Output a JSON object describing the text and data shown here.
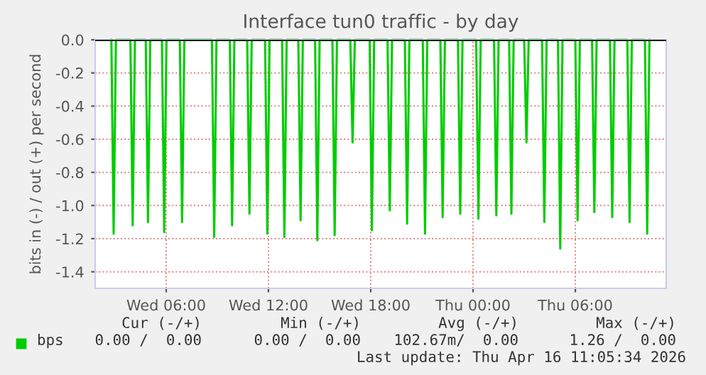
{
  "chart_data": {
    "type": "line",
    "title": "Interface tun0 traffic - by day",
    "ylabel": "bits in (-) / out (+) per second",
    "x": [
      "2026-04-15T02:47",
      "2026-04-15T02:55",
      "2026-04-15T03:03",
      "2026-04-15T03:54",
      "2026-04-15T04:02",
      "2026-04-15T04:10",
      "2026-04-15T04:48",
      "2026-04-15T04:56",
      "2026-04-15T05:04",
      "2026-04-15T05:45",
      "2026-04-15T05:53",
      "2026-04-15T06:01",
      "2026-04-15T06:48",
      "2026-04-15T06:56",
      "2026-04-15T07:04",
      "2026-04-15T08:41",
      "2026-04-15T08:49",
      "2026-04-15T08:57",
      "2026-04-15T09:44",
      "2026-04-15T09:52",
      "2026-04-15T10:00",
      "2026-04-15T10:45",
      "2026-04-15T10:53",
      "2026-04-15T11:01",
      "2026-04-15T11:48",
      "2026-04-15T11:56",
      "2026-04-15T12:04",
      "2026-04-15T12:48",
      "2026-04-15T12:56",
      "2026-04-15T13:04",
      "2026-04-15T13:45",
      "2026-04-15T13:53",
      "2026-04-15T14:01",
      "2026-04-15T14:44",
      "2026-04-15T14:52",
      "2026-04-15T15:00",
      "2026-04-15T15:45",
      "2026-04-15T15:53",
      "2026-04-15T16:01",
      "2026-04-15T16:48",
      "2026-04-15T16:56",
      "2026-04-15T17:04",
      "2026-04-15T17:56",
      "2026-04-15T18:04",
      "2026-04-15T18:12",
      "2026-04-15T18:59",
      "2026-04-15T19:07",
      "2026-04-15T19:15",
      "2026-04-15T20:00",
      "2026-04-15T20:08",
      "2026-04-15T20:16",
      "2026-04-15T21:03",
      "2026-04-15T21:11",
      "2026-04-15T21:19",
      "2026-04-15T22:05",
      "2026-04-15T22:13",
      "2026-04-15T22:21",
      "2026-04-15T23:07",
      "2026-04-15T23:15",
      "2026-04-15T23:23",
      "2026-04-16T00:11",
      "2026-04-16T00:19",
      "2026-04-16T00:27",
      "2026-04-16T01:14",
      "2026-04-16T01:22",
      "2026-04-16T01:30",
      "2026-04-16T02:07",
      "2026-04-16T02:15",
      "2026-04-16T02:23",
      "2026-04-16T03:00",
      "2026-04-16T03:08",
      "2026-04-16T03:16",
      "2026-04-16T04:03",
      "2026-04-16T04:11",
      "2026-04-16T04:19",
      "2026-04-16T04:59",
      "2026-04-16T05:07",
      "2026-04-16T05:15",
      "2026-04-16T06:00",
      "2026-04-16T06:08",
      "2026-04-16T06:16",
      "2026-04-16T06:59",
      "2026-04-16T07:07",
      "2026-04-16T07:15",
      "2026-04-16T08:02",
      "2026-04-16T08:10",
      "2026-04-16T08:18",
      "2026-04-16T09:03",
      "2026-04-16T09:11",
      "2026-04-16T09:19",
      "2026-04-16T10:05",
      "2026-04-16T10:13",
      "2026-04-16T10:21"
    ],
    "series": [
      {
        "name": "bps",
        "color": "#00cc00",
        "values": [
          0,
          -1.17,
          0,
          0,
          -1.12,
          0,
          0,
          -1.1,
          0,
          0,
          -1.16,
          0,
          0,
          -1.1,
          0,
          0,
          -1.19,
          0,
          0,
          -1.12,
          0,
          0,
          -1.05,
          0,
          0,
          -1.17,
          0,
          0,
          -1.19,
          0,
          0,
          -1.09,
          0,
          0,
          -1.21,
          0,
          0,
          -1.18,
          0,
          0,
          -0.62,
          0,
          0,
          -1.15,
          0,
          0,
          -1.03,
          0,
          0,
          -1.11,
          0,
          0,
          -1.17,
          0,
          0,
          -1.07,
          0,
          0,
          -1.05,
          0,
          0,
          -1.08,
          0,
          0,
          -1.06,
          0,
          0,
          -1.05,
          0,
          0,
          -0.62,
          0,
          0,
          -1.1,
          0,
          0,
          -1.26,
          0,
          0,
          -1.09,
          0,
          0,
          -1.04,
          0,
          0,
          -1.07,
          0,
          0,
          -1.1,
          0,
          0,
          -1.17,
          0
        ]
      }
    ],
    "xlim": [
      "2026-04-15T01:50",
      "2026-04-16T11:20"
    ],
    "xticks": [
      {
        "value": "2026-04-15T06:00",
        "label": "Wed 06:00"
      },
      {
        "value": "2026-04-15T12:00",
        "label": "Wed 12:00"
      },
      {
        "value": "2026-04-15T18:00",
        "label": "Wed 18:00"
      },
      {
        "value": "2026-04-16T00:00",
        "label": "Thu 00:00"
      },
      {
        "value": "2026-04-16T06:00",
        "label": "Thu 06:00"
      }
    ],
    "ylim": [
      -1.5,
      0.0
    ],
    "yticks": [
      {
        "value": 0,
        "label": "0.0"
      },
      -0.2,
      -0.4,
      -0.6,
      -0.8,
      {
        "value": -1,
        "label": "-1.0"
      },
      -1.2,
      -1.4
    ],
    "ref_lines": [
      {
        "axis": "y",
        "value": 0,
        "color": "#000000"
      }
    ],
    "grid": true,
    "legend": "bottom left",
    "marker": "none",
    "line_style": "solid",
    "annotations": [
      "Cur (-/+)",
      "Min (-/+)",
      "Avg (-/+)",
      "Max (-/+)",
      "0.00 /  0.00",
      "0.00 /  0.00",
      "102.67m/  0.00",
      "1.26 /  0.00",
      "Last update: Thu Apr 16 11:05:34 2026"
    ]
  }
}
